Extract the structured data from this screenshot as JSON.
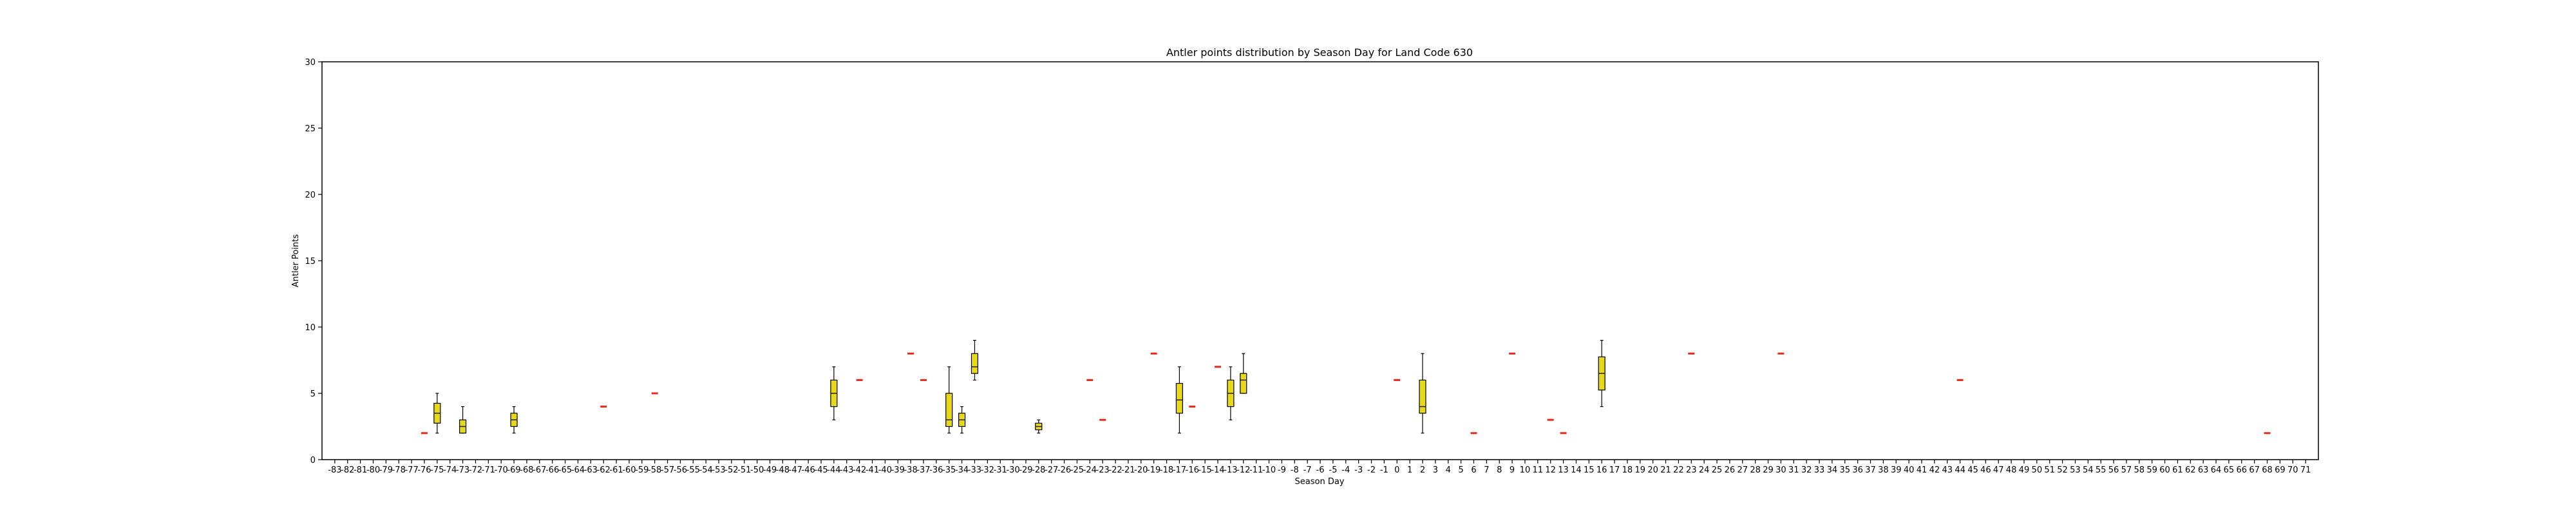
{
  "chart_data": {
    "type": "box",
    "title": "Antler points distribution by Season Day for Land Code 630",
    "xlabel": "Season Day",
    "ylabel": "Antler Points",
    "ylim": [
      0,
      30
    ],
    "yticks": [
      0,
      5,
      10,
      15,
      20,
      25,
      30
    ],
    "xrange": [
      -83,
      71
    ],
    "grid": false,
    "colors": {
      "box_fill": "#e8d81a",
      "median": "#222222",
      "single": "#e8281a",
      "axes": "#000000"
    },
    "boxes": [
      {
        "day": -76,
        "min": 2,
        "q1": 2,
        "median": 2,
        "q3": 2,
        "max": 2
      },
      {
        "day": -75,
        "min": 2,
        "q1": 2.75,
        "median": 3.5,
        "q3": 4.25,
        "max": 5
      },
      {
        "day": -73,
        "min": 2,
        "q1": 2,
        "median": 2.5,
        "q3": 3,
        "max": 4
      },
      {
        "day": -69,
        "min": 2,
        "q1": 2.5,
        "median": 3,
        "q3": 3.5,
        "max": 4
      },
      {
        "day": -62,
        "min": 4,
        "q1": 4,
        "median": 4,
        "q3": 4,
        "max": 4
      },
      {
        "day": -58,
        "min": 5,
        "q1": 5,
        "median": 5,
        "q3": 5,
        "max": 5
      },
      {
        "day": -44,
        "min": 3,
        "q1": 4,
        "median": 5,
        "q3": 6,
        "max": 7
      },
      {
        "day": -42,
        "min": 6,
        "q1": 6,
        "median": 6,
        "q3": 6,
        "max": 6
      },
      {
        "day": -38,
        "min": 8,
        "q1": 8,
        "median": 8,
        "q3": 8,
        "max": 8
      },
      {
        "day": -37,
        "min": 6,
        "q1": 6,
        "median": 6,
        "q3": 6,
        "max": 6
      },
      {
        "day": -35,
        "min": 2,
        "q1": 2.5,
        "median": 3,
        "q3": 5,
        "max": 7
      },
      {
        "day": -34,
        "min": 2,
        "q1": 2.5,
        "median": 3,
        "q3": 3.5,
        "max": 4
      },
      {
        "day": -33,
        "min": 6,
        "q1": 6.5,
        "median": 7,
        "q3": 8,
        "max": 9
      },
      {
        "day": -28,
        "min": 2,
        "q1": 2.25,
        "median": 2.5,
        "q3": 2.75,
        "max": 3
      },
      {
        "day": -24,
        "min": 6,
        "q1": 6,
        "median": 6,
        "q3": 6,
        "max": 6
      },
      {
        "day": -23,
        "min": 3,
        "q1": 3,
        "median": 3,
        "q3": 3,
        "max": 3
      },
      {
        "day": -19,
        "min": 8,
        "q1": 8,
        "median": 8,
        "q3": 8,
        "max": 8
      },
      {
        "day": -17,
        "min": 2,
        "q1": 3.5,
        "median": 4.5,
        "q3": 5.75,
        "max": 7
      },
      {
        "day": -16,
        "min": 4,
        "q1": 4,
        "median": 4,
        "q3": 4,
        "max": 4
      },
      {
        "day": -14,
        "min": 7,
        "q1": 7,
        "median": 7,
        "q3": 7,
        "max": 7
      },
      {
        "day": -13,
        "min": 3,
        "q1": 4,
        "median": 5,
        "q3": 6,
        "max": 7
      },
      {
        "day": -12,
        "min": 5,
        "q1": 5,
        "median": 6,
        "q3": 6.5,
        "max": 8
      },
      {
        "day": 0,
        "min": 6,
        "q1": 6,
        "median": 6,
        "q3": 6,
        "max": 6
      },
      {
        "day": 2,
        "min": 2,
        "q1": 3.5,
        "median": 4,
        "q3": 6,
        "max": 8
      },
      {
        "day": 6,
        "min": 2,
        "q1": 2,
        "median": 2,
        "q3": 2,
        "max": 2
      },
      {
        "day": 9,
        "min": 8,
        "q1": 8,
        "median": 8,
        "q3": 8,
        "max": 8
      },
      {
        "day": 12,
        "min": 3,
        "q1": 3,
        "median": 3,
        "q3": 3,
        "max": 3
      },
      {
        "day": 13,
        "min": 2,
        "q1": 2,
        "median": 2,
        "q3": 2,
        "max": 2
      },
      {
        "day": 16,
        "min": 4,
        "q1": 5.25,
        "median": 6.5,
        "q3": 7.75,
        "max": 9
      },
      {
        "day": 23,
        "min": 8,
        "q1": 8,
        "median": 8,
        "q3": 8,
        "max": 8
      },
      {
        "day": 30,
        "min": 8,
        "q1": 8,
        "median": 8,
        "q3": 8,
        "max": 8
      },
      {
        "day": 44,
        "min": 6,
        "q1": 6,
        "median": 6,
        "q3": 6,
        "max": 6
      },
      {
        "day": 68,
        "min": 2,
        "q1": 2,
        "median": 2,
        "q3": 2,
        "max": 2
      }
    ]
  }
}
